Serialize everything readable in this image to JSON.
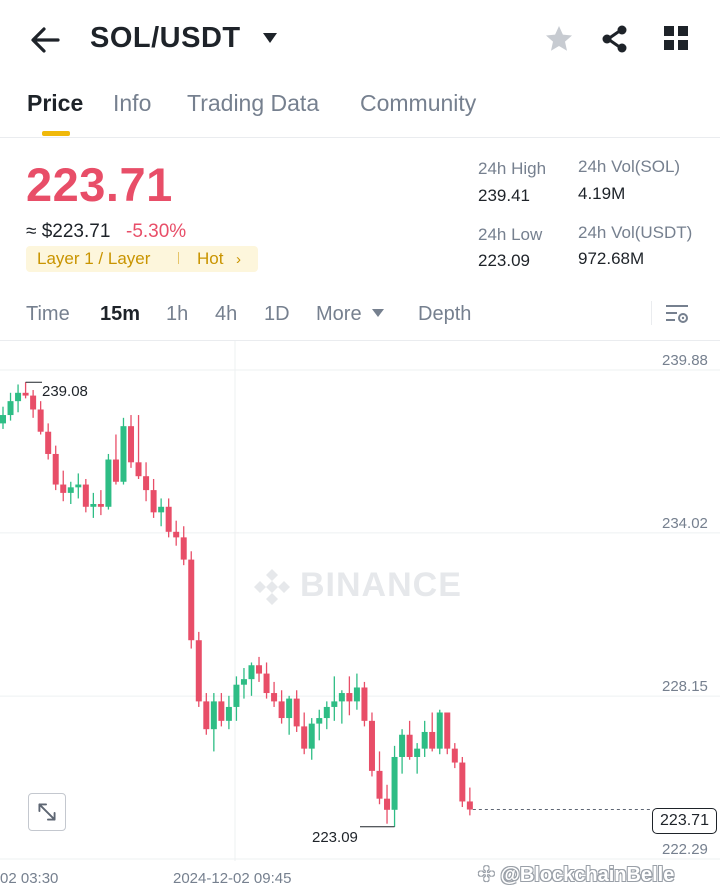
{
  "header": {
    "pair": "SOL/USDT",
    "icons": [
      "back-arrow-icon",
      "caret-down-icon",
      "star-icon",
      "share-icon",
      "grid-icon"
    ]
  },
  "tabs": [
    {
      "label": "Price",
      "active": true
    },
    {
      "label": "Info"
    },
    {
      "label": "Trading Data"
    },
    {
      "label": "Community"
    }
  ],
  "ticker": {
    "last_price": "223.71",
    "fiat_price": "≈ $223.71",
    "change_pct": "-5.30%",
    "tag_label": "Layer 1 / Layer",
    "tag_hot": "Hot",
    "stats": [
      {
        "label": "24h High",
        "value": "239.41"
      },
      {
        "label": "24h Vol(SOL)",
        "value": "4.19M"
      },
      {
        "label": "24h Low",
        "value": "223.09"
      },
      {
        "label": "24h Vol(USDT)",
        "value": "972.68M"
      }
    ]
  },
  "intervals": {
    "items": [
      "Time",
      "15m",
      "1h",
      "4h",
      "1D",
      "More",
      "Depth"
    ],
    "active": "15m"
  },
  "colors": {
    "up": "#2ebd85",
    "down": "#e84e68",
    "accent": "#f0b90b"
  },
  "chart": {
    "price_axis": [
      "239.88",
      "234.02",
      "228.15",
      "222.29"
    ],
    "time_axis": [
      "02 03:30",
      "2024-12-02 09:45"
    ],
    "high_marker": "239.08",
    "low_marker": "223.09",
    "current_price_tag": "223.71",
    "watermark": "BINANCE"
  },
  "chart_data": {
    "type": "candlestick",
    "interval": "15m",
    "ylim": [
      222.29,
      239.88
    ],
    "candles": [
      [
        237.6,
        238.2,
        237.4,
        237.9
      ],
      [
        237.9,
        238.7,
        237.7,
        238.4
      ],
      [
        238.4,
        239.0,
        238.0,
        238.7
      ],
      [
        238.7,
        239.08,
        238.5,
        238.6
      ],
      [
        238.6,
        238.8,
        237.8,
        238.1
      ],
      [
        238.1,
        238.4,
        237.2,
        237.3
      ],
      [
        237.3,
        237.6,
        236.3,
        236.5
      ],
      [
        236.5,
        236.8,
        235.2,
        235.4
      ],
      [
        235.4,
        235.9,
        234.8,
        235.1
      ],
      [
        235.1,
        235.5,
        234.7,
        235.3
      ],
      [
        235.3,
        235.8,
        234.9,
        235.4
      ],
      [
        235.4,
        235.6,
        234.4,
        234.6
      ],
      [
        234.6,
        235.1,
        234.2,
        234.7
      ],
      [
        234.7,
        235.2,
        234.3,
        234.6
      ],
      [
        234.6,
        236.5,
        234.5,
        236.3
      ],
      [
        236.3,
        237.2,
        235.4,
        235.5
      ],
      [
        235.5,
        237.8,
        235.4,
        237.5
      ],
      [
        237.5,
        237.9,
        236.0,
        236.2
      ],
      [
        236.2,
        237.9,
        235.6,
        235.7
      ],
      [
        235.7,
        236.2,
        234.8,
        235.2
      ],
      [
        235.2,
        235.6,
        234.2,
        234.4
      ],
      [
        234.4,
        234.9,
        233.9,
        234.6
      ],
      [
        234.6,
        234.9,
        233.5,
        233.7
      ],
      [
        233.7,
        234.1,
        233.2,
        233.5
      ],
      [
        233.5,
        233.9,
        232.5,
        232.7
      ],
      [
        232.7,
        233.0,
        229.5,
        229.8
      ],
      [
        229.8,
        230.1,
        227.4,
        227.6
      ],
      [
        227.6,
        227.9,
        226.4,
        226.6
      ],
      [
        226.6,
        227.9,
        225.8,
        227.6
      ],
      [
        227.6,
        227.9,
        226.7,
        226.9
      ],
      [
        226.9,
        227.8,
        226.6,
        227.4
      ],
      [
        227.4,
        228.5,
        226.9,
        228.2
      ],
      [
        228.2,
        228.8,
        227.7,
        228.4
      ],
      [
        228.4,
        229.0,
        227.8,
        228.9
      ],
      [
        228.9,
        229.2,
        228.3,
        228.6
      ],
      [
        228.6,
        229.0,
        227.7,
        227.9
      ],
      [
        227.9,
        228.3,
        227.4,
        227.6
      ],
      [
        227.6,
        228.0,
        226.8,
        227.0
      ],
      [
        227.0,
        227.8,
        226.4,
        227.7
      ],
      [
        227.7,
        228.0,
        226.5,
        226.7
      ],
      [
        226.7,
        227.2,
        225.7,
        225.9
      ],
      [
        225.9,
        227.0,
        225.5,
        226.8
      ],
      [
        226.8,
        227.3,
        226.2,
        227.0
      ],
      [
        227.0,
        227.6,
        226.6,
        227.4
      ],
      [
        227.4,
        228.5,
        226.9,
        227.6
      ],
      [
        227.6,
        228.0,
        226.8,
        227.9
      ],
      [
        227.9,
        228.5,
        227.1,
        227.6
      ],
      [
        227.6,
        228.6,
        227.3,
        228.1
      ],
      [
        228.1,
        228.3,
        226.7,
        226.9
      ],
      [
        226.9,
        227.2,
        224.9,
        225.1
      ],
      [
        225.1,
        225.8,
        223.9,
        224.1
      ],
      [
        224.1,
        224.6,
        223.2,
        223.7
      ],
      [
        223.7,
        226.0,
        223.09,
        225.6
      ],
      [
        225.6,
        226.6,
        225.0,
        226.4
      ],
      [
        226.4,
        226.9,
        225.5,
        225.6
      ],
      [
        225.6,
        226.1,
        225.0,
        225.9
      ],
      [
        225.9,
        226.9,
        225.6,
        226.5
      ],
      [
        226.5,
        227.2,
        225.8,
        225.9
      ],
      [
        225.9,
        227.3,
        225.7,
        227.2
      ],
      [
        227.2,
        227.2,
        225.7,
        225.9
      ],
      [
        225.9,
        226.1,
        225.2,
        225.4
      ],
      [
        225.4,
        225.6,
        223.8,
        224.0
      ],
      [
        224.0,
        224.5,
        223.5,
        223.71
      ]
    ],
    "annotations": {
      "high": 239.08,
      "low": 223.09,
      "last": 223.71
    },
    "xlabels": [
      "02 03:30",
      "2024-12-02 09:45"
    ],
    "grid": true
  }
}
